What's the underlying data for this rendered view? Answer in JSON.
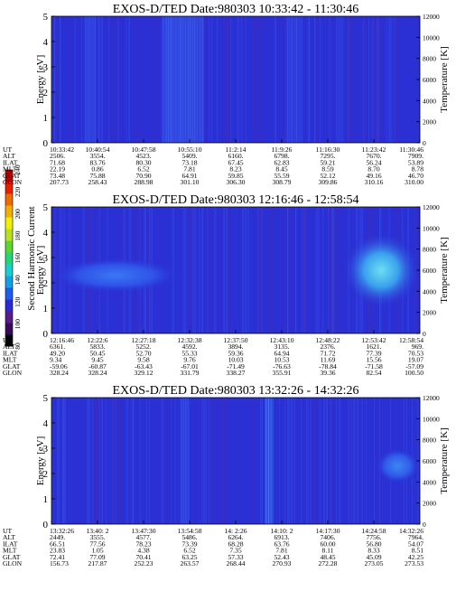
{
  "colorbar": {
    "label": "Second Harmonic Current",
    "ticks": [
      "80",
      "100",
      "120",
      "140",
      "160",
      "180",
      "200",
      "220",
      "240"
    ],
    "colors": [
      "#000000",
      "#3a0a5a",
      "#5a1a8a",
      "#2a2ad8",
      "#1e5cf0",
      "#12a0e8",
      "#18d0d0",
      "#20d878",
      "#5ad830",
      "#b8e020",
      "#f0f000",
      "#f0b000",
      "#f06a00",
      "#e82000",
      "#c00000"
    ]
  },
  "panels": [
    {
      "title": "EXOS-D/TED   Date:980303   10:33:42 - 11:30:46",
      "ylabel_left": "Energy [eV]",
      "ylabel_right": "Temperature [K]",
      "yticks_left": [
        "0",
        "1",
        "2",
        "3",
        "4",
        "5"
      ],
      "yticks_right": [
        "0",
        "2000",
        "4000",
        "6000",
        "8000",
        "10000",
        "12000"
      ],
      "rows": [
        {
          "label": "UT",
          "values": [
            "10:33:42",
            "10:40:54",
            "10:47:58",
            "10:55:10",
            "11:2:14",
            "11:9:26",
            "11:16:30",
            "11:23:42",
            "11:30:46"
          ]
        },
        {
          "label": "ALT",
          "values": [
            "2506.",
            "3554.",
            "4523.",
            "5409.",
            "6160.",
            "6798.",
            "7295.",
            "7670.",
            "7909."
          ]
        },
        {
          "label": "ILAT",
          "values": [
            "71.68",
            "83.76",
            "80.30",
            "73.18",
            "67.45",
            "62.83",
            "59.21",
            "56.24",
            "53.89"
          ]
        },
        {
          "label": "MLT",
          "values": [
            "22.19",
            "0.86",
            "6.52",
            "7.81",
            "8.23",
            "8.45",
            "8.59",
            "8.70",
            "8.78"
          ]
        },
        {
          "label": "GLAT",
          "values": [
            "73.48",
            "75.88",
            "70.90",
            "64.91",
            "59.85",
            "55.59",
            "52.12",
            "49.16",
            "46.70"
          ]
        },
        {
          "label": "GLON",
          "values": [
            "207.73",
            "258.43",
            "288.98",
            "301.10",
            "306.30",
            "308.79",
            "309.86",
            "310.16",
            "310.00"
          ]
        }
      ],
      "chart_data": {
        "type": "heatmap",
        "title": "EXOS-D/TED   Date:980303   10:33:42 - 11:30:46",
        "xlabel": "UT",
        "ylabel": "Energy [eV]",
        "y2label": "Temperature [K]",
        "ylim": [
          0,
          5
        ],
        "y2lim": [
          0,
          12000
        ],
        "x": [
          "10:33:42",
          "10:40:54",
          "10:47:58",
          "10:55:10",
          "11:2:14",
          "11:9:26",
          "11:16:30",
          "11:23:42",
          "11:30:46"
        ],
        "colorbar_range": [
          80,
          240
        ],
        "background_level": 135,
        "features": [
          {
            "x_frac": [
              0.09,
              0.12
            ],
            "level": 150
          },
          {
            "x_frac": [
              0.3,
              0.41
            ],
            "level": 155
          },
          {
            "x_frac": [
              0.64,
              0.68
            ],
            "level": 150
          }
        ]
      }
    },
    {
      "title": "EXOS-D/TED   Date:980303   12:16:46 - 12:58:54",
      "ylabel_left": "Energy [eV]",
      "ylabel_right": "Temperature [K]",
      "yticks_left": [
        "0",
        "1",
        "2",
        "3",
        "4",
        "5"
      ],
      "yticks_right": [
        "0",
        "2000",
        "4000",
        "6000",
        "8000",
        "10000",
        "12000"
      ],
      "rows": [
        {
          "label": "UT",
          "values": [
            "12:16:46",
            "12:22:6",
            "12:27:18",
            "12:32:38",
            "12:37:50",
            "12:43:10",
            "12:48:22",
            "12:53:42",
            "12:58:54"
          ]
        },
        {
          "label": "ALT",
          "values": [
            "6361.",
            "5833.",
            "5252.",
            "4592.",
            "3894.",
            "3135.",
            "2376.",
            "1621.",
            "969."
          ]
        },
        {
          "label": "ILAT",
          "values": [
            "49.20",
            "50.45",
            "52.70",
            "55.33",
            "59.36",
            "64.94",
            "71.72",
            "77.39",
            "70.53"
          ]
        },
        {
          "label": "MLT",
          "values": [
            "9.34",
            "9.45",
            "9.58",
            "9.76",
            "10.03",
            "10.53",
            "11.69",
            "15.56",
            "19.07"
          ]
        },
        {
          "label": "GLAT",
          "values": [
            "-59.06",
            "-60.87",
            "-63.43",
            "-67.01",
            "-71.49",
            "-76.63",
            "-78.84",
            "-71.58",
            "-57.09"
          ]
        },
        {
          "label": "GLON",
          "values": [
            "328.24",
            "328.24",
            "329.12",
            "331.79",
            "338.27",
            "355.91",
            "39.36",
            "82.54",
            "100.50"
          ]
        }
      ],
      "chart_data": {
        "type": "heatmap",
        "title": "EXOS-D/TED   Date:980303   12:16:46 - 12:58:54",
        "xlabel": "UT",
        "ylabel": "Energy [eV]",
        "y2label": "Temperature [K]",
        "ylim": [
          0,
          5
        ],
        "y2lim": [
          0,
          12000
        ],
        "x": [
          "12:16:46",
          "12:22:6",
          "12:27:18",
          "12:32:38",
          "12:37:50",
          "12:43:10",
          "12:48:22",
          "12:53:42",
          "12:58:54"
        ],
        "colorbar_range": [
          80,
          240
        ],
        "background_level": 135,
        "features": [
          {
            "x_frac": [
              0.0,
              0.35
            ],
            "y_energy": [
              1.6,
              3.0
            ],
            "level": 145
          },
          {
            "x_frac": [
              0.79,
              1.0
            ],
            "y_energy": [
              1.0,
              4.0
            ],
            "level": 160
          }
        ]
      }
    },
    {
      "title": "EXOS-D/TED   Date:980303   13:32:26 - 14:32:26",
      "ylabel_left": "Energy [eV]",
      "ylabel_right": "Temperature [K]",
      "yticks_left": [
        "0",
        "1",
        "2",
        "3",
        "4",
        "5"
      ],
      "yticks_right": [
        "0",
        "2000",
        "4000",
        "6000",
        "8000",
        "10000",
        "12000"
      ],
      "rows": [
        {
          "label": "UT",
          "values": [
            "13:32:26",
            "13:40: 2",
            "13:47:30",
            "13:54:58",
            "14: 2:26",
            "14:10: 2",
            "14:17:30",
            "14:24:58",
            "14:32:26"
          ]
        },
        {
          "label": "ALT",
          "values": [
            "2449.",
            "3555.",
            "4577.",
            "5486.",
            "6264.",
            "6913.",
            "7406.",
            "7756.",
            "7964."
          ]
        },
        {
          "label": "ILAT",
          "values": [
            "66.51",
            "77.56",
            "78.23",
            "73.39",
            "68.28",
            "63.76",
            "60.00",
            "56.80",
            "54.07"
          ]
        },
        {
          "label": "MLT",
          "values": [
            "23.83",
            "1.05",
            "4.38",
            "6.52",
            "7.35",
            "7.81",
            "8.11",
            "8.33",
            "8.51"
          ]
        },
        {
          "label": "GLAT",
          "values": [
            "72.41",
            "77.09",
            "70.41",
            "63.25",
            "57.33",
            "52.43",
            "48.45",
            "45.09",
            "42.25"
          ]
        },
        {
          "label": "GLON",
          "values": [
            "156.73",
            "217.87",
            "252.23",
            "263.57",
            "268.44",
            "270.93",
            "272.28",
            "273.05",
            "273.53"
          ]
        }
      ],
      "chart_data": {
        "type": "heatmap",
        "title": "EXOS-D/TED   Date:980303   13:32:26 - 14:32:26",
        "xlabel": "UT",
        "ylabel": "Energy [eV]",
        "y2label": "Temperature [K]",
        "ylim": [
          0,
          5
        ],
        "y2lim": [
          0,
          12000
        ],
        "x": [
          "13:32:26",
          "13:40: 2",
          "13:47:30",
          "13:54:58",
          "14: 2:26",
          "14:10: 2",
          "14:17:30",
          "14:24:58",
          "14:32:26"
        ],
        "colorbar_range": [
          80,
          240
        ],
        "background_level": 135,
        "features": [
          {
            "x_frac": [
              0.35,
              0.37
            ],
            "level": 150
          },
          {
            "x_frac": [
              0.58,
              0.6
            ],
            "level": 160
          },
          {
            "x_frac": [
              0.88,
              1.0
            ],
            "y_energy": [
              1.6,
              3.0
            ],
            "level": 148
          }
        ]
      }
    }
  ]
}
